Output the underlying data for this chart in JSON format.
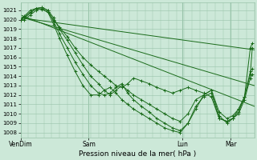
{
  "background_color": "#cce8d8",
  "grid_color": "#99c4aa",
  "line_color": "#1a6b1a",
  "title": "Pression niveau de la mer( hPa )",
  "ylim": [
    1007.5,
    1021.8
  ],
  "yticks": [
    1008,
    1009,
    1010,
    1011,
    1012,
    1013,
    1014,
    1015,
    1016,
    1017,
    1018,
    1019,
    1020,
    1021
  ],
  "xtick_labels": [
    "VenDim",
    "Sam",
    "Lun",
    "Mar"
  ],
  "xtick_positions": [
    0,
    35,
    83,
    108
  ],
  "total_points": 120,
  "straight_lines": [
    {
      "x": [
        0,
        120
      ],
      "y": [
        1020.2,
        1016.8
      ]
    },
    {
      "x": [
        0,
        120
      ],
      "y": [
        1020.3,
        1013.0
      ]
    },
    {
      "x": [
        0,
        120
      ],
      "y": [
        1020.5,
        1010.8
      ]
    }
  ],
  "detail_lines": [
    {
      "x": [
        0,
        2,
        5,
        8,
        11,
        14,
        17,
        20,
        24,
        28,
        32,
        36,
        40,
        43,
        46,
        49,
        52,
        55,
        58,
        62,
        66,
        70,
        74,
        78,
        82,
        86,
        90,
        94,
        98,
        102,
        106,
        109,
        112,
        115,
        118,
        119
      ],
      "y": [
        1020.0,
        1020.4,
        1021.0,
        1021.2,
        1021.1,
        1020.8,
        1020.0,
        1019.2,
        1018.2,
        1017.0,
        1016.0,
        1015.2,
        1014.5,
        1014.0,
        1013.5,
        1013.0,
        1012.8,
        1013.2,
        1013.8,
        1013.5,
        1013.2,
        1012.8,
        1012.5,
        1012.2,
        1012.5,
        1012.8,
        1012.5,
        1012.2,
        1011.8,
        1009.5,
        1009.2,
        1009.5,
        1010.0,
        1011.5,
        1013.8,
        1014.2
      ]
    },
    {
      "x": [
        0,
        2,
        5,
        8,
        11,
        14,
        17,
        20,
        24,
        28,
        32,
        36,
        40,
        43,
        46,
        49,
        52,
        55,
        58,
        62,
        66,
        70,
        74,
        78,
        82,
        86,
        90,
        94,
        98,
        102,
        106,
        109,
        112,
        115,
        118,
        119
      ],
      "y": [
        1020.0,
        1020.3,
        1020.8,
        1021.2,
        1021.3,
        1021.0,
        1020.2,
        1019.0,
        1017.8,
        1016.5,
        1015.2,
        1014.0,
        1013.2,
        1012.5,
        1012.0,
        1012.5,
        1013.0,
        1012.5,
        1012.0,
        1011.5,
        1011.0,
        1010.5,
        1010.0,
        1009.5,
        1009.2,
        1010.0,
        1011.5,
        1012.0,
        1012.5,
        1010.2,
        1009.5,
        1009.8,
        1010.5,
        1011.8,
        1014.5,
        1014.8
      ]
    },
    {
      "x": [
        0,
        2,
        5,
        8,
        11,
        14,
        17,
        20,
        24,
        28,
        32,
        36,
        40,
        43,
        46,
        49,
        52,
        55,
        58,
        62,
        66,
        70,
        74,
        78,
        82,
        86,
        90,
        94,
        98,
        102,
        106,
        109,
        112,
        115,
        118,
        119
      ],
      "y": [
        1020.0,
        1020.2,
        1020.7,
        1021.2,
        1021.3,
        1021.0,
        1019.8,
        1018.5,
        1017.0,
        1015.5,
        1014.2,
        1013.0,
        1012.2,
        1012.0,
        1012.2,
        1012.8,
        1013.2,
        1012.2,
        1011.5,
        1010.8,
        1010.2,
        1009.5,
        1009.0,
        1008.5,
        1008.2,
        1009.0,
        1010.5,
        1012.0,
        1012.5,
        1009.8,
        1009.0,
        1009.5,
        1010.2,
        1011.8,
        1017.0,
        1017.5
      ]
    },
    {
      "x": [
        0,
        2,
        5,
        8,
        11,
        14,
        17,
        20,
        24,
        28,
        32,
        36,
        40,
        43,
        46,
        49,
        52,
        55,
        58,
        62,
        66,
        70,
        74,
        78,
        82,
        86,
        90,
        94,
        98,
        102,
        106,
        109,
        112,
        115,
        118,
        119
      ],
      "y": [
        1020.0,
        1020.0,
        1020.5,
        1021.0,
        1021.2,
        1020.8,
        1019.5,
        1018.0,
        1016.2,
        1014.5,
        1013.0,
        1012.0,
        1012.0,
        1012.5,
        1012.8,
        1012.2,
        1011.5,
        1011.0,
        1010.5,
        1010.0,
        1009.5,
        1009.0,
        1008.5,
        1008.2,
        1008.0,
        1009.0,
        1010.8,
        1011.8,
        1012.2,
        1009.5,
        1009.2,
        1009.5,
        1010.5,
        1011.8,
        1014.2,
        1017.0
      ]
    }
  ]
}
